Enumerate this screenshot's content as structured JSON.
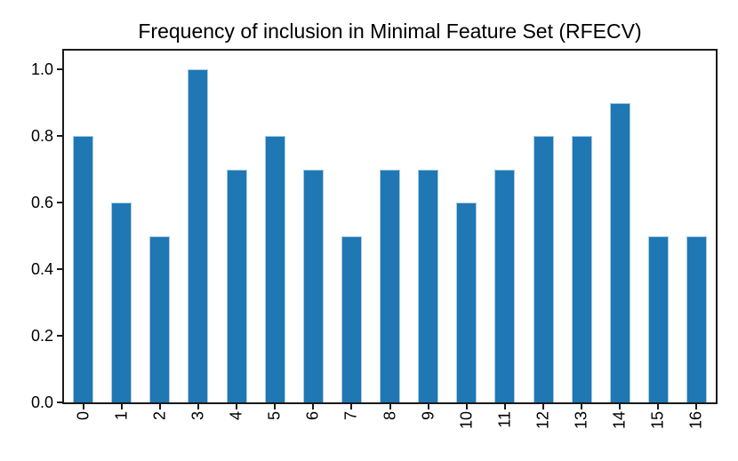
{
  "figure": {
    "background": "#ffffff"
  },
  "chart_data": {
    "type": "bar",
    "title": "Frequency of inclusion in Minimal Feature Set (RFECV)",
    "xlabel": "",
    "ylabel": "",
    "categories": [
      "0",
      "1",
      "2",
      "3",
      "4",
      "5",
      "6",
      "7",
      "8",
      "9",
      "10",
      "11",
      "12",
      "13",
      "14",
      "15",
      "16"
    ],
    "values": [
      0.8,
      0.6,
      0.5,
      1.0,
      0.7,
      0.8,
      0.7,
      0.5,
      0.7,
      0.7,
      0.6,
      0.7,
      0.8,
      0.8,
      0.9,
      0.5,
      0.5
    ],
    "ylim": [
      0,
      1.056
    ],
    "ytick_labels": [
      "0.0",
      "0.2",
      "0.4",
      "0.6",
      "0.8",
      "1.0"
    ],
    "ytick_values": [
      0.0,
      0.2,
      0.4,
      0.6,
      0.8,
      1.0
    ],
    "xtick_rotation": 90,
    "grid": false,
    "legend": null,
    "bar_color": "#1f77b4",
    "bar_edge_color": "#a9cbe5",
    "axis_color": "#1a1a1a",
    "text_color": "#000000"
  }
}
